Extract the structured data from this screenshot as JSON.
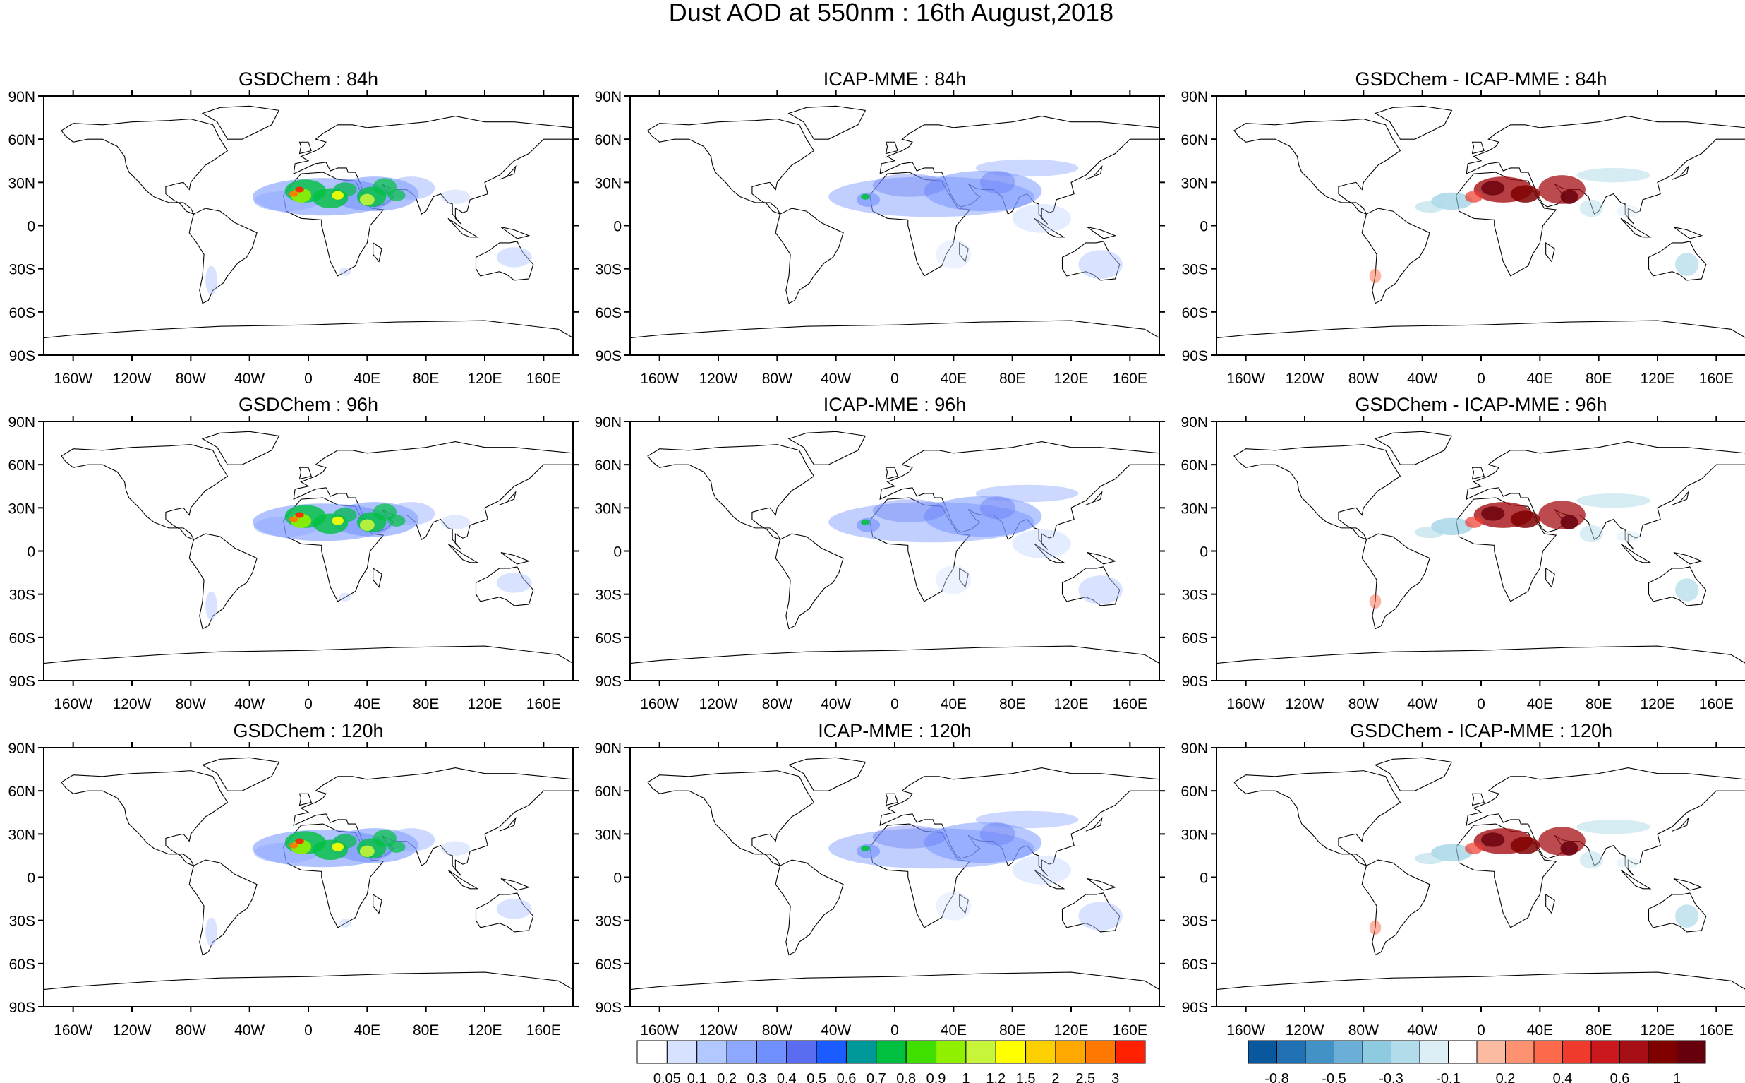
{
  "figure": {
    "title": "Dust AOD at 550nm : 16th August,2018"
  },
  "axes": {
    "lat_ticks": [
      "90N",
      "60N",
      "30N",
      "0",
      "30S",
      "60S",
      "90S"
    ],
    "lon_ticks": [
      "160W",
      "120W",
      "80W",
      "40W",
      "0",
      "40E",
      "80E",
      "120E",
      "160E"
    ],
    "lon_values": [
      -160,
      -120,
      -80,
      -40,
      0,
      40,
      80,
      120,
      160
    ],
    "lat_values": [
      90,
      60,
      30,
      0,
      -30,
      -60,
      -90
    ]
  },
  "chart_data": [
    {
      "type": "heatmap",
      "title": "GSDChem : 84h",
      "row": 0,
      "col": 0,
      "field": "aod",
      "lead": "84h"
    },
    {
      "type": "heatmap",
      "title": "ICAP-MME : 84h",
      "row": 0,
      "col": 1,
      "field": "aod",
      "lead": "84h"
    },
    {
      "type": "heatmap",
      "title": "GSDChem - ICAP-MME : 84h",
      "row": 0,
      "col": 2,
      "field": "diff",
      "lead": "84h"
    },
    {
      "type": "heatmap",
      "title": "GSDChem : 96h",
      "row": 1,
      "col": 0,
      "field": "aod",
      "lead": "96h"
    },
    {
      "type": "heatmap",
      "title": "ICAP-MME : 96h",
      "row": 1,
      "col": 1,
      "field": "aod",
      "lead": "96h"
    },
    {
      "type": "heatmap",
      "title": "GSDChem - ICAP-MME : 96h",
      "row": 1,
      "col": 2,
      "field": "diff",
      "lead": "96h"
    },
    {
      "type": "heatmap",
      "title": "GSDChem : 120h",
      "row": 2,
      "col": 0,
      "field": "aod",
      "lead": "120h"
    },
    {
      "type": "heatmap",
      "title": "ICAP-MME : 120h",
      "row": 2,
      "col": 1,
      "field": "aod",
      "lead": "120h"
    },
    {
      "type": "heatmap",
      "title": "GSDChem - ICAP-MME : 120h",
      "row": 2,
      "col": 2,
      "field": "diff",
      "lead": "120h"
    }
  ],
  "colorbars": {
    "aod": {
      "labels": [
        "0.05",
        "0.1",
        "0.2",
        "0.3",
        "0.4",
        "0.5",
        "0.6",
        "0.7",
        "0.8",
        "0.9",
        "1",
        "1.2",
        "1.5",
        "2",
        "2.5",
        "3"
      ],
      "colors": [
        "#ffffff",
        "#d6e2ff",
        "#b3c8ff",
        "#8ea8ff",
        "#7090ff",
        "#5a6df0",
        "#1a5cff",
        "#00999a",
        "#00c040",
        "#3fdf00",
        "#8ff000",
        "#c6f53a",
        "#ffff00",
        "#ffd000",
        "#ffa800",
        "#ff7800",
        "#ff2000"
      ]
    },
    "diff": {
      "labels": [
        "-0.8",
        "-0.5",
        "-0.3",
        "-0.1",
        "0.2",
        "0.4",
        "0.6",
        "1"
      ],
      "colors": [
        "#08589e",
        "#2171b5",
        "#4292c6",
        "#6baed6",
        "#8ecbe0",
        "#b3dcea",
        "#dceef6",
        "#ffffff",
        "#fcbba1",
        "#fc9272",
        "#fb6a4a",
        "#ef3b2c",
        "#cb181d",
        "#a50f15",
        "#800000",
        "#67000d"
      ]
    }
  }
}
